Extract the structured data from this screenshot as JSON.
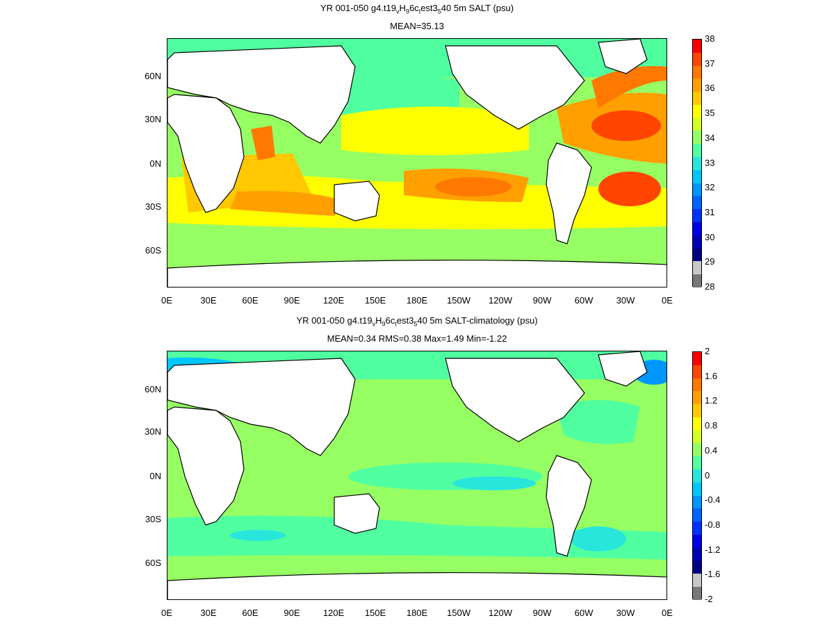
{
  "panels": [
    {
      "id": "salt",
      "title_parts": [
        "YR 001-050 g4.t19",
        "v",
        "H",
        "9",
        "6c",
        "t",
        "est3",
        "5",
        "40 5m SALT (psu)"
      ],
      "subtitle": "MEAN=35.13",
      "colorbar": {
        "ticks": [
          "38",
          "37",
          "36",
          "35",
          "34",
          "33",
          "32",
          "31",
          "30",
          "29",
          "28"
        ],
        "colors": [
          "#ff0000",
          "#ff4500",
          "#ff7800",
          "#ffa000",
          "#ffc800",
          "#ffff00",
          "#d2ff28",
          "#96ff64",
          "#50ffa0",
          "#28e6dc",
          "#00c8ff",
          "#0096ff",
          "#0064ff",
          "#0032ff",
          "#0000e6",
          "#0000b4",
          "#000082",
          "#c8c8c8",
          "#787878"
        ]
      },
      "ocean_base": "#9cff5c"
    },
    {
      "id": "anomaly",
      "title_parts": [
        "YR 001-050 g4.t19",
        "v",
        "H",
        "9",
        "6c",
        "t",
        "est3",
        "5",
        "40 5m SALT-climatology (psu)"
      ],
      "subtitle": "MEAN=0.34   RMS=0.38   Max=1.49   Min=-1.22",
      "colorbar": {
        "ticks": [
          "2",
          "1.6",
          "1.2",
          "0.8",
          "0.4",
          "0",
          "-0.4",
          "-0.8",
          "-1.2",
          "-1.6",
          "-2"
        ],
        "colors": [
          "#ff0000",
          "#ff4500",
          "#ff7800",
          "#ffa000",
          "#ffc800",
          "#ffff00",
          "#d2ff28",
          "#96ff64",
          "#50ffa0",
          "#28e6dc",
          "#00c8ff",
          "#0096ff",
          "#0064ff",
          "#0032ff",
          "#0000e6",
          "#0000b4",
          "#000082",
          "#c8c8c8",
          "#787878"
        ]
      },
      "ocean_base": "#96ff64"
    }
  ],
  "lat_labels": [
    "60N",
    "30N",
    "0N",
    "30S",
    "60S"
  ],
  "lon_labels": [
    "0E",
    "30E",
    "60E",
    "90E",
    "120E",
    "150E",
    "180E",
    "150W",
    "120W",
    "90W",
    "60W",
    "30W",
    "0E"
  ]
}
